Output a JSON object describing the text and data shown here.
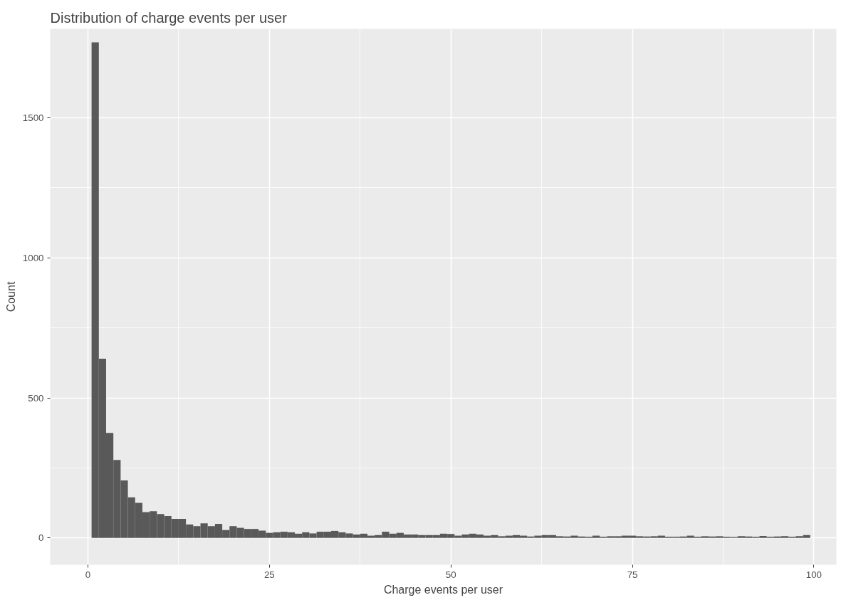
{
  "chart_data": {
    "type": "histogram",
    "title": "Distribution of charge events per user",
    "xlabel": "Charge events per user",
    "ylabel": "Count",
    "bins": [
      0.5,
      1.5,
      2.5,
      3.5,
      4.5,
      5.5,
      6.5,
      7.5,
      8.5,
      9.5,
      10.5,
      11.5,
      12.5,
      13.5,
      14.5,
      15.5,
      16.5,
      17.5,
      18.5,
      19.5,
      20.5,
      21.5,
      22.5,
      23.5,
      24.5,
      25.5,
      26.5,
      27.5,
      28.5,
      29.5,
      30.5,
      31.5,
      32.5,
      33.5,
      34.5,
      35.5,
      36.5,
      37.5,
      38.5,
      39.5,
      40.5,
      41.5,
      42.5,
      43.5,
      44.5,
      45.5,
      46.5,
      47.5,
      48.5,
      49.5,
      50.5,
      51.5,
      52.5,
      53.5,
      54.5,
      55.5,
      56.5,
      57.5,
      58.5,
      59.5,
      60.5,
      61.5,
      62.5,
      63.5,
      64.5,
      65.5,
      66.5,
      67.5,
      68.5,
      69.5,
      70.5,
      71.5,
      72.5,
      73.5,
      74.5,
      75.5,
      76.5,
      77.5,
      78.5,
      79.5,
      80.5,
      81.5,
      82.5,
      83.5,
      84.5,
      85.5,
      86.5,
      87.5,
      88.5,
      89.5,
      90.5,
      91.5,
      92.5,
      93.5,
      94.5,
      95.5,
      96.5,
      97.5,
      98.5,
      99.5
    ],
    "values": [
      1770,
      640,
      375,
      278,
      205,
      145,
      125,
      92,
      95,
      85,
      78,
      68,
      68,
      48,
      42,
      52,
      42,
      50,
      28,
      42,
      36,
      32,
      32,
      26,
      18,
      20,
      22,
      20,
      15,
      20,
      16,
      22,
      22,
      25,
      20,
      16,
      12,
      15,
      8,
      10,
      22,
      15,
      18,
      12,
      12,
      10,
      10,
      10,
      15,
      14,
      8,
      12,
      15,
      12,
      8,
      10,
      6,
      8,
      10,
      8,
      5,
      8,
      10,
      10,
      6,
      5,
      8,
      5,
      4,
      8,
      4,
      6,
      6,
      8,
      8,
      6,
      5,
      6,
      8,
      4,
      4,
      5,
      8,
      4,
      6,
      5,
      6,
      4,
      3,
      6,
      5,
      4,
      7,
      4,
      5,
      6,
      4,
      6,
      10
    ],
    "color": "#595959",
    "xlim": [
      -5.2,
      103.1
    ],
    "ylim": [
      -96,
      1818
    ],
    "xticks": [
      0,
      25,
      50,
      75,
      100
    ],
    "yticks": [
      0,
      500,
      1000,
      1500
    ],
    "grid": true
  }
}
